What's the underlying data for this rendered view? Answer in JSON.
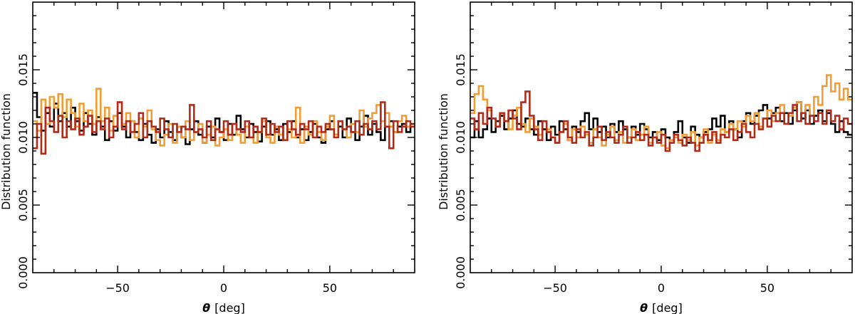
{
  "chart_data": [
    {
      "type": "line",
      "subtype": "histogram-step",
      "title": "",
      "xlabel_symbol": "θ",
      "xlabel_unit": "[deg]",
      "ylabel": "Distribution function",
      "xlim": [
        -90,
        90
      ],
      "ylim": [
        0.0,
        0.02
      ],
      "x_ticks": [
        -50,
        0,
        50
      ],
      "x_tick_labels": [
        "−50",
        "0",
        "50"
      ],
      "y_ticks": [
        0.0,
        0.005,
        0.01,
        0.015
      ],
      "y_tick_labels": [
        "0.000",
        "0.005",
        "0.010",
        "0.015"
      ],
      "bin_width": 2,
      "legend": "none",
      "series": [
        {
          "color": "#000000",
          "values": [
            0.0133,
            0.0115,
            0.0105,
            0.0118,
            0.0108,
            0.0125,
            0.0112,
            0.0118,
            0.0108,
            0.0122,
            0.0112,
            0.0105,
            0.0118,
            0.011,
            0.0102,
            0.0115,
            0.0108,
            0.0098,
            0.0112,
            0.0105,
            0.0118,
            0.0108,
            0.01,
            0.0112,
            0.0104,
            0.0098,
            0.011,
            0.0102,
            0.0096,
            0.0106,
            0.01,
            0.0112,
            0.0104,
            0.0098,
            0.0108,
            0.01,
            0.0095,
            0.0106,
            0.0112,
            0.0102,
            0.0096,
            0.0108,
            0.01,
            0.0114,
            0.0104,
            0.0098,
            0.011,
            0.0102,
            0.0116,
            0.0106,
            0.01,
            0.011,
            0.0104,
            0.0097,
            0.0108,
            0.0112,
            0.0102,
            0.0106,
            0.0098,
            0.011,
            0.0104,
            0.0112,
            0.01,
            0.0106,
            0.0098,
            0.0104,
            0.011,
            0.01,
            0.0096,
            0.0106,
            0.0112,
            0.0102,
            0.0108,
            0.01,
            0.0114,
            0.0104,
            0.0098,
            0.0108,
            0.0116,
            0.0102,
            0.011,
            0.0104,
            0.0098,
            0.0108,
            0.0112,
            0.0104,
            0.0108,
            0.011,
            0.0104,
            0.0108
          ]
        },
        {
          "color": "#F39C33",
          "values": [
            0.0112,
            0.0105,
            0.0128,
            0.011,
            0.013,
            0.0122,
            0.0132,
            0.0115,
            0.0128,
            0.0118,
            0.0108,
            0.0125,
            0.0112,
            0.012,
            0.011,
            0.0136,
            0.0112,
            0.0122,
            0.0105,
            0.0116,
            0.0126,
            0.011,
            0.0118,
            0.0112,
            0.01,
            0.0114,
            0.0108,
            0.012,
            0.0106,
            0.0098,
            0.0094,
            0.0102,
            0.011,
            0.0096,
            0.0108,
            0.01,
            0.0112,
            0.0098,
            0.0104,
            0.011,
            0.0096,
            0.0102,
            0.0108,
            0.0094,
            0.01,
            0.0106,
            0.0098,
            0.011,
            0.0102,
            0.0096,
            0.0108,
            0.01,
            0.0096,
            0.0104,
            0.0112,
            0.01,
            0.0096,
            0.0108,
            0.0102,
            0.0098,
            0.0106,
            0.01,
            0.0122,
            0.0096,
            0.0108,
            0.0102,
            0.0112,
            0.0104,
            0.0098,
            0.0108,
            0.0116,
            0.0102,
            0.0112,
            0.0106,
            0.01,
            0.011,
            0.0104,
            0.012,
            0.0108,
            0.0114,
            0.0118,
            0.0124,
            0.0112,
            0.0118,
            0.0108,
            0.0104,
            0.0112,
            0.0116,
            0.0108,
            0.011
          ]
        },
        {
          "color": "#B22A18",
          "values": [
            0.0092,
            0.011,
            0.0088,
            0.0122,
            0.0112,
            0.0104,
            0.0116,
            0.01,
            0.0112,
            0.0106,
            0.0114,
            0.0102,
            0.0108,
            0.0116,
            0.0104,
            0.0112,
            0.0106,
            0.0114,
            0.01,
            0.0108,
            0.0126,
            0.0106,
            0.0112,
            0.0104,
            0.011,
            0.0118,
            0.01,
            0.0112,
            0.0108,
            0.0104,
            0.0114,
            0.0106,
            0.01,
            0.011,
            0.0104,
            0.0108,
            0.0106,
            0.0124,
            0.0104,
            0.0106,
            0.01,
            0.0112,
            0.0098,
            0.0106,
            0.0104,
            0.0112,
            0.0102,
            0.011,
            0.0106,
            0.0104,
            0.0112,
            0.01,
            0.0108,
            0.0104,
            0.0114,
            0.0102,
            0.011,
            0.0104,
            0.0108,
            0.0098,
            0.0112,
            0.0106,
            0.0102,
            0.011,
            0.0106,
            0.0112,
            0.01,
            0.0108,
            0.0104,
            0.011,
            0.0106,
            0.01,
            0.0112,
            0.0106,
            0.0108,
            0.0104,
            0.0112,
            0.0102,
            0.011,
            0.0106,
            0.0112,
            0.0106,
            0.0126,
            0.0108,
            0.0092,
            0.0112,
            0.0104,
            0.0108,
            0.0112,
            0.0108
          ]
        }
      ]
    },
    {
      "type": "line",
      "subtype": "histogram-step",
      "title": "",
      "xlabel_symbol": "θ",
      "xlabel_unit": "[deg]",
      "ylabel": "Distribution function",
      "xlim": [
        -90,
        90
      ],
      "ylim": [
        0.0,
        0.02
      ],
      "x_ticks": [
        -50,
        0,
        50
      ],
      "x_tick_labels": [
        "−50",
        "0",
        "50"
      ],
      "y_ticks": [
        0.0,
        0.005,
        0.01,
        0.015
      ],
      "y_tick_labels": [
        "0.000",
        "0.005",
        "0.010",
        "0.015"
      ],
      "bin_width": 2,
      "legend": "none",
      "series": [
        {
          "color": "#000000",
          "values": [
            0.01,
            0.0112,
            0.01,
            0.0106,
            0.0114,
            0.0104,
            0.0112,
            0.0116,
            0.0106,
            0.0114,
            0.012,
            0.011,
            0.0108,
            0.0114,
            0.0106,
            0.0102,
            0.0112,
            0.0106,
            0.0098,
            0.0108,
            0.0102,
            0.0112,
            0.0106,
            0.0098,
            0.0108,
            0.0104,
            0.0112,
            0.0118,
            0.0106,
            0.0114,
            0.0104,
            0.0108,
            0.01,
            0.011,
            0.0104,
            0.0112,
            0.0106,
            0.01,
            0.0108,
            0.0102,
            0.011,
            0.0106,
            0.01,
            0.0104,
            0.0098,
            0.0106,
            0.01,
            0.0098,
            0.0104,
            0.0112,
            0.01,
            0.0096,
            0.0108,
            0.0102,
            0.01,
            0.0104,
            0.0106,
            0.0114,
            0.0108,
            0.0116,
            0.0104,
            0.0112,
            0.0106,
            0.01,
            0.0112,
            0.0118,
            0.011,
            0.0116,
            0.012,
            0.0124,
            0.0114,
            0.0118,
            0.0122,
            0.0112,
            0.0118,
            0.011,
            0.012,
            0.0126,
            0.0114,
            0.012,
            0.011,
            0.0116,
            0.012,
            0.0112,
            0.0118,
            0.011,
            0.0104,
            0.0112,
            0.0104,
            0.0102
          ]
        },
        {
          "color": "#F39C33",
          "values": [
            0.0118,
            0.0132,
            0.0138,
            0.0128,
            0.012,
            0.0114,
            0.0108,
            0.0118,
            0.0112,
            0.0106,
            0.0116,
            0.0122,
            0.011,
            0.0104,
            0.0114,
            0.0108,
            0.0102,
            0.0112,
            0.0106,
            0.01,
            0.0096,
            0.0104,
            0.011,
            0.0098,
            0.0106,
            0.01,
            0.0108,
            0.0102,
            0.0096,
            0.0106,
            0.01,
            0.0094,
            0.0102,
            0.0108,
            0.0098,
            0.0104,
            0.0096,
            0.01,
            0.0106,
            0.0098,
            0.0102,
            0.0108,
            0.0096,
            0.01,
            0.0104,
            0.0094,
            0.0092,
            0.0098,
            0.01,
            0.0096,
            0.0102,
            0.0098,
            0.0104,
            0.0094,
            0.01,
            0.0106,
            0.0096,
            0.0102,
            0.0098,
            0.0106,
            0.0104,
            0.011,
            0.0106,
            0.0112,
            0.0108,
            0.0116,
            0.0112,
            0.0118,
            0.0108,
            0.0114,
            0.012,
            0.0112,
            0.0118,
            0.0124,
            0.011,
            0.0116,
            0.0122,
            0.0126,
            0.0118,
            0.0124,
            0.0116,
            0.013,
            0.0124,
            0.0138,
            0.0146,
            0.0134,
            0.014,
            0.0128,
            0.0136,
            0.0128
          ]
        },
        {
          "color": "#B22A18",
          "values": [
            0.0114,
            0.0106,
            0.0118,
            0.011,
            0.0122,
            0.0114,
            0.0108,
            0.0118,
            0.0112,
            0.012,
            0.0114,
            0.0106,
            0.0126,
            0.0134,
            0.0116,
            0.0106,
            0.0098,
            0.0112,
            0.0104,
            0.01,
            0.0096,
            0.0104,
            0.0112,
            0.01,
            0.0096,
            0.0106,
            0.01,
            0.0104,
            0.0094,
            0.01,
            0.0108,
            0.0098,
            0.0104,
            0.01,
            0.0096,
            0.0102,
            0.0108,
            0.0096,
            0.01,
            0.0104,
            0.0098,
            0.0102,
            0.0094,
            0.01,
            0.0096,
            0.0102,
            0.009,
            0.0096,
            0.0102,
            0.0098,
            0.0094,
            0.01,
            0.0096,
            0.009,
            0.0096,
            0.0102,
            0.0098,
            0.0104,
            0.0096,
            0.0102,
            0.01,
            0.0106,
            0.0098,
            0.0104,
            0.011,
            0.0104,
            0.01,
            0.011,
            0.0106,
            0.0114,
            0.0108,
            0.0116,
            0.0112,
            0.0118,
            0.011,
            0.0118,
            0.0124,
            0.0112,
            0.0118,
            0.011,
            0.0116,
            0.0112,
            0.0118,
            0.011,
            0.012,
            0.0112,
            0.0116,
            0.0106,
            0.0114,
            0.011
          ]
        }
      ]
    }
  ]
}
